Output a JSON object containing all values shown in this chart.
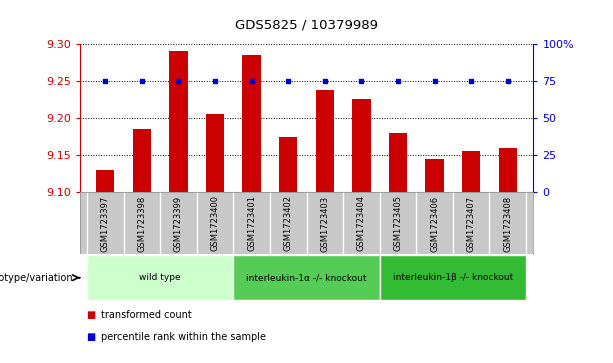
{
  "title": "GDS5825 / 10379989",
  "samples": [
    "GSM1723397",
    "GSM1723398",
    "GSM1723399",
    "GSM1723400",
    "GSM1723401",
    "GSM1723402",
    "GSM1723403",
    "GSM1723404",
    "GSM1723405",
    "GSM1723406",
    "GSM1723407",
    "GSM1723408"
  ],
  "transformed_count": [
    9.13,
    9.185,
    9.29,
    9.205,
    9.285,
    9.175,
    9.237,
    9.225,
    9.18,
    9.145,
    9.155,
    9.16
  ],
  "percentile_rank": [
    75,
    75,
    75,
    75,
    75,
    75,
    75,
    75,
    75,
    75,
    75,
    75
  ],
  "ylim_left": [
    9.1,
    9.3
  ],
  "ylim_right": [
    0,
    100
  ],
  "yticks_left": [
    9.1,
    9.15,
    9.2,
    9.25,
    9.3
  ],
  "yticks_right": [
    0,
    25,
    50,
    75,
    100
  ],
  "ytick_labels_right": [
    "0",
    "25",
    "50",
    "75",
    "100%"
  ],
  "bar_color": "#cc0000",
  "dot_color": "#0000cc",
  "grid_color": "#000000",
  "groups": [
    {
      "label": "wild type",
      "start": 0,
      "end": 3,
      "color": "#ccffcc"
    },
    {
      "label": "interleukin-1α -/- knockout",
      "start": 4,
      "end": 7,
      "color": "#55cc55"
    },
    {
      "label": "interleukin-1β -/- knockout",
      "start": 8,
      "end": 11,
      "color": "#33bb33"
    }
  ],
  "genotype_label": "genotype/variation",
  "legend_items": [
    {
      "color": "#cc0000",
      "label": "transformed count"
    },
    {
      "color": "#0000cc",
      "label": "percentile rank within the sample"
    }
  ],
  "left_tick_color": "#cc0000",
  "right_tick_color": "#0000cc",
  "background_color": "#ffffff",
  "sample_bg_color": "#c8c8c8",
  "bar_width": 0.5
}
